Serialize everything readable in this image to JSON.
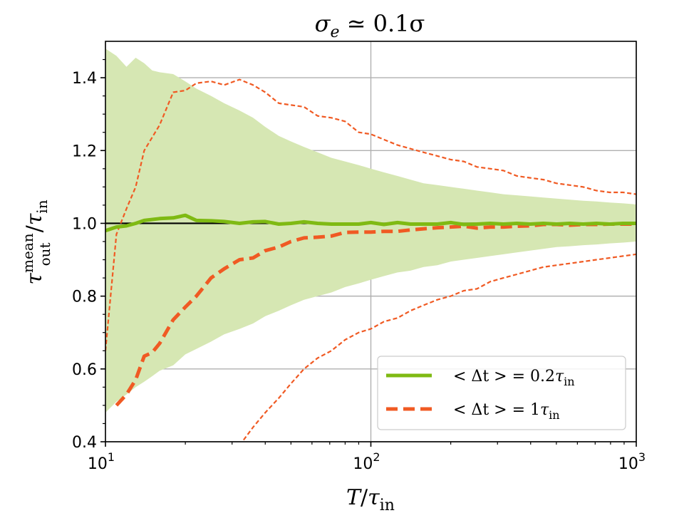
{
  "chart_data": {
    "type": "line",
    "title": {
      "sigma": "σ",
      "sub": "e",
      "rest": " ≃ 0.1σ"
    },
    "xlabel": {
      "var": "T",
      "slash": "/",
      "tau": "τ",
      "sub": "in"
    },
    "ylabel": {
      "tau": "τ",
      "sup": "mean",
      "sub": "out",
      "slash": "/",
      "tau2": "τ",
      "sub2": "in"
    },
    "x_scale": "log",
    "xlim": [
      10,
      1000
    ],
    "ylim": [
      0.4,
      1.5
    ],
    "x_ticks": [
      {
        "value": 10,
        "base": "10",
        "exp": "1"
      },
      {
        "value": 100,
        "base": "10",
        "exp": "2"
      },
      {
        "value": 1000,
        "base": "10",
        "exp": "3"
      }
    ],
    "y_ticks": [
      {
        "value": 0.4,
        "label": "0.4"
      },
      {
        "value": 0.6,
        "label": "0.6"
      },
      {
        "value": 0.8,
        "label": "0.8"
      },
      {
        "value": 1.0,
        "label": "1.0"
      },
      {
        "value": 1.2,
        "label": "1.2"
      },
      {
        "value": 1.4,
        "label": "1.4"
      }
    ],
    "grid": true,
    "reference_line": 1.0,
    "colors": {
      "green": "#7fba13",
      "green_fill": "#d6e7b3",
      "orange": "#f05a23",
      "black": "#000000",
      "grid": "#b0b0b0"
    },
    "legend_position": "lower-right",
    "legend": [
      {
        "series": "green_mean",
        "pre": "< Δt > = 0.2",
        "tau": "τ",
        "sub": "in"
      },
      {
        "series": "orange_mean",
        "pre": "< Δt > = 1",
        "tau": "τ",
        "sub": "in"
      }
    ],
    "series": [
      {
        "name": "green_band",
        "kind": "band",
        "x": [
          10,
          11,
          12,
          13,
          14,
          15,
          16,
          18,
          20,
          22,
          25,
          28,
          32,
          36,
          40,
          45,
          50,
          56,
          63,
          71,
          80,
          90,
          100,
          112,
          126,
          141,
          158,
          178,
          200,
          224,
          251,
          282,
          316,
          355,
          398,
          447,
          501,
          562,
          631,
          708,
          794,
          891,
          1000
        ],
        "upper": [
          1.48,
          1.46,
          1.43,
          1.455,
          1.44,
          1.42,
          1.415,
          1.41,
          1.39,
          1.37,
          1.35,
          1.33,
          1.31,
          1.29,
          1.265,
          1.24,
          1.225,
          1.21,
          1.195,
          1.18,
          1.17,
          1.16,
          1.15,
          1.14,
          1.13,
          1.12,
          1.11,
          1.105,
          1.1,
          1.095,
          1.09,
          1.085,
          1.08,
          1.077,
          1.074,
          1.071,
          1.068,
          1.065,
          1.062,
          1.06,
          1.057,
          1.055,
          1.052
        ],
        "lower": [
          0.48,
          0.51,
          0.53,
          0.55,
          0.565,
          0.58,
          0.595,
          0.61,
          0.64,
          0.655,
          0.675,
          0.695,
          0.71,
          0.725,
          0.745,
          0.76,
          0.775,
          0.79,
          0.8,
          0.81,
          0.825,
          0.835,
          0.845,
          0.855,
          0.865,
          0.87,
          0.88,
          0.885,
          0.895,
          0.9,
          0.905,
          0.91,
          0.915,
          0.92,
          0.925,
          0.93,
          0.935,
          0.937,
          0.94,
          0.942,
          0.945,
          0.947,
          0.95
        ]
      },
      {
        "name": "orange_upper",
        "kind": "line",
        "style": "dotted",
        "x": [
          10,
          11,
          12,
          13,
          14,
          16,
          18,
          20,
          22,
          25,
          28,
          32,
          36,
          40,
          45,
          50,
          56,
          63,
          71,
          80,
          90,
          100,
          112,
          126,
          141,
          158,
          178,
          200,
          224,
          251,
          282,
          316,
          355,
          398,
          447,
          501,
          562,
          631,
          708,
          794,
          891,
          1000
        ],
        "y": [
          0.65,
          0.97,
          1.04,
          1.1,
          1.2,
          1.27,
          1.36,
          1.365,
          1.385,
          1.39,
          1.38,
          1.395,
          1.38,
          1.36,
          1.33,
          1.325,
          1.32,
          1.295,
          1.29,
          1.28,
          1.25,
          1.245,
          1.23,
          1.215,
          1.205,
          1.195,
          1.185,
          1.175,
          1.17,
          1.155,
          1.15,
          1.145,
          1.13,
          1.125,
          1.12,
          1.11,
          1.105,
          1.1,
          1.09,
          1.085,
          1.085,
          1.08
        ]
      },
      {
        "name": "orange_lower",
        "kind": "line",
        "style": "dotted",
        "x": [
          32,
          36,
          40,
          45,
          50,
          56,
          63,
          71,
          80,
          90,
          100,
          112,
          126,
          141,
          158,
          178,
          200,
          224,
          251,
          282,
          316,
          355,
          398,
          447,
          501,
          562,
          631,
          708,
          794,
          891,
          1000
        ],
        "y": [
          0.39,
          0.44,
          0.48,
          0.52,
          0.56,
          0.6,
          0.63,
          0.65,
          0.68,
          0.7,
          0.71,
          0.73,
          0.74,
          0.76,
          0.775,
          0.79,
          0.8,
          0.815,
          0.82,
          0.84,
          0.85,
          0.86,
          0.87,
          0.88,
          0.885,
          0.89,
          0.895,
          0.9,
          0.905,
          0.91,
          0.915
        ]
      },
      {
        "name": "orange_mean",
        "kind": "line",
        "style": "dashed",
        "x": [
          11,
          12,
          13,
          14,
          15,
          16,
          18,
          20,
          22,
          25,
          28,
          32,
          36,
          40,
          45,
          50,
          56,
          63,
          71,
          80,
          90,
          100,
          112,
          126,
          141,
          158,
          178,
          200,
          224,
          251,
          282,
          316,
          355,
          398,
          447,
          501,
          562,
          631,
          708,
          794,
          891,
          1000
        ],
        "y": [
          0.5,
          0.53,
          0.57,
          0.635,
          0.645,
          0.67,
          0.735,
          0.77,
          0.8,
          0.85,
          0.875,
          0.9,
          0.905,
          0.925,
          0.935,
          0.95,
          0.96,
          0.962,
          0.965,
          0.975,
          0.976,
          0.976,
          0.978,
          0.978,
          0.982,
          0.985,
          0.988,
          0.99,
          0.992,
          0.987,
          0.99,
          0.99,
          0.992,
          0.993,
          0.997,
          0.997,
          0.995,
          0.997,
          0.997,
          0.998,
          0.998,
          0.998
        ]
      },
      {
        "name": "green_mean",
        "kind": "line",
        "style": "solid",
        "x": [
          10,
          11,
          12,
          13,
          14,
          16,
          18,
          20,
          22,
          25,
          28,
          32,
          36,
          40,
          45,
          50,
          56,
          63,
          71,
          80,
          90,
          100,
          112,
          126,
          141,
          158,
          178,
          200,
          224,
          251,
          282,
          316,
          355,
          398,
          447,
          501,
          562,
          631,
          708,
          794,
          891,
          1000
        ],
        "y": [
          0.98,
          0.99,
          0.993,
          1.0,
          1.008,
          1.013,
          1.015,
          1.022,
          1.008,
          1.007,
          1.005,
          1.0,
          1.004,
          1.005,
          0.998,
          1.0,
          1.004,
          1.0,
          0.998,
          0.998,
          0.998,
          1.002,
          0.997,
          1.002,
          0.998,
          0.998,
          0.998,
          1.002,
          0.997,
          0.998,
          1.0,
          0.998,
          1.0,
          0.998,
          1.0,
          0.998,
          1.0,
          0.998,
          1.0,
          0.998,
          1.0,
          1.0
        ]
      }
    ]
  }
}
